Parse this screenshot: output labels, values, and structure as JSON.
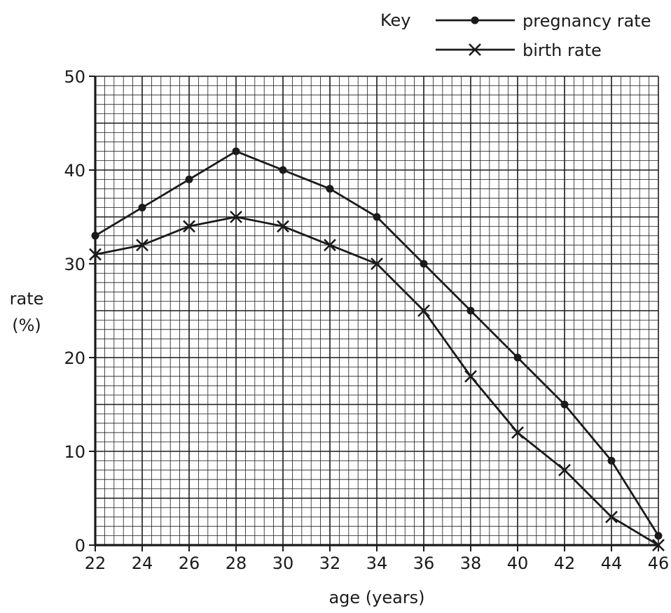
{
  "chart_data": {
    "type": "line",
    "title": "",
    "xlabel": "age (years)",
    "ylabel_line1": "rate",
    "ylabel_line2": "(%)",
    "x": [
      22,
      24,
      26,
      28,
      30,
      32,
      34,
      36,
      38,
      40,
      42,
      44,
      46
    ],
    "x_tick_labels": [
      "22",
      "24",
      "26",
      "28",
      "30",
      "32",
      "34",
      "36",
      "38",
      "40",
      "42",
      "44",
      "46"
    ],
    "y_tick_labels": [
      "0",
      "10",
      "20",
      "30",
      "40",
      "50"
    ],
    "xlim": [
      22,
      46
    ],
    "ylim": [
      0,
      50
    ],
    "grid": true,
    "legend": {
      "title": "Key",
      "placement": "top-right"
    },
    "series": [
      {
        "name": "pregnancy rate",
        "marker": "dot",
        "values": [
          33,
          36,
          39,
          42,
          40,
          38,
          35,
          30,
          25,
          20,
          15,
          9,
          1
        ]
      },
      {
        "name": "birth rate",
        "marker": "cross",
        "values": [
          31,
          32,
          34,
          35,
          34,
          32,
          30,
          25,
          18,
          12,
          8,
          3,
          0
        ]
      }
    ],
    "colors": {
      "line": "#1a1a1a",
      "grid": "#1a1a1a",
      "background": "#ffffff"
    }
  }
}
